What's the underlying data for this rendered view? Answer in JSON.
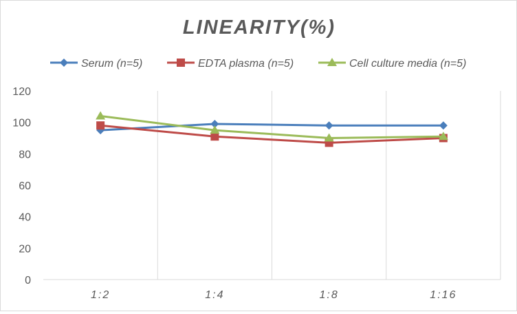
{
  "chart_data": {
    "type": "line",
    "title": "LINEARITY(%)",
    "xlabel": "",
    "ylabel": "",
    "categories": [
      "1:2",
      "1:4",
      "1:8",
      "1:16"
    ],
    "ylim": [
      0,
      120
    ],
    "yticks": [
      0,
      20,
      40,
      60,
      80,
      100,
      120
    ],
    "grid": "vertical",
    "legend": "top",
    "series": [
      {
        "name": "Serum (n=5)",
        "values": [
          95,
          99,
          98,
          98
        ],
        "color": "#4a7ebb",
        "marker": "diamond"
      },
      {
        "name": "EDTA plasma (n=5)",
        "values": [
          98,
          91,
          87,
          90
        ],
        "color": "#be4b48",
        "marker": "square"
      },
      {
        "name": "Cell culture media (n=5)",
        "values": [
          104,
          95,
          90,
          91
        ],
        "color": "#9bbb59",
        "marker": "triangle"
      }
    ]
  }
}
